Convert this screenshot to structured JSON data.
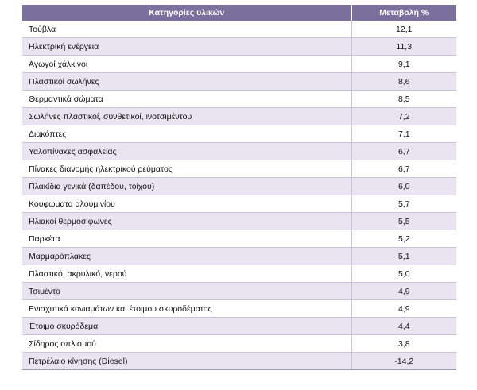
{
  "table": {
    "headers": {
      "category": "Κατηγορίες υλικών",
      "change": "Μεταβολή %"
    },
    "rows": [
      {
        "category": "Τούβλα",
        "change": "12,1"
      },
      {
        "category": "Ηλεκτρική ενέργεια",
        "change": "11,3"
      },
      {
        "category": "Αγωγοί χάλκινοι",
        "change": "9,1"
      },
      {
        "category": "Πλαστικοί σωλήνες",
        "change": "8,6"
      },
      {
        "category": "Θερμαντικά σώματα",
        "change": "8,5"
      },
      {
        "category": "Σωλήνες πλαστικοί, συνθετικοί, ινοτσιμέντου",
        "change": "7,2"
      },
      {
        "category": "Διακόπτες",
        "change": "7,1"
      },
      {
        "category": "Υαλοπίνακες ασφαλείας",
        "change": "6,7"
      },
      {
        "category": "Πίνακες διανομής ηλεκτρικού ρεύματος",
        "change": "6,7"
      },
      {
        "category": "Πλακίδια γενικά (δαπέδου, τοίχου)",
        "change": "6,0"
      },
      {
        "category": "Κουφώματα αλουμινίου",
        "change": "5,7"
      },
      {
        "category": "Ηλιακοί θερμοσίφωνες",
        "change": "5,5"
      },
      {
        "category": "Παρκέτα",
        "change": "5,2"
      },
      {
        "category": "Μαρμαρόπλακες",
        "change": "5,1"
      },
      {
        "category": "Πλαστικό, ακρυλικό, νερού",
        "change": "5,0"
      },
      {
        "category": "Τσιμέντο",
        "change": "4,9"
      },
      {
        "category": "Ενισχυτικά κονιαμάτων και έτοιμου σκυροδέματος",
        "change": "4,9"
      },
      {
        "category": "Έτοιμο σκυρόδεμα",
        "change": "4,4"
      },
      {
        "category": "Σίδηρος οπλισμού",
        "change": "3,8"
      },
      {
        "category": "Πετρέλαιο κίνησης (Diesel)",
        "change": "-14,2"
      }
    ]
  },
  "colors": {
    "header_bg": "#7b6f9d",
    "stripe_bg": "#e8e5f0"
  }
}
